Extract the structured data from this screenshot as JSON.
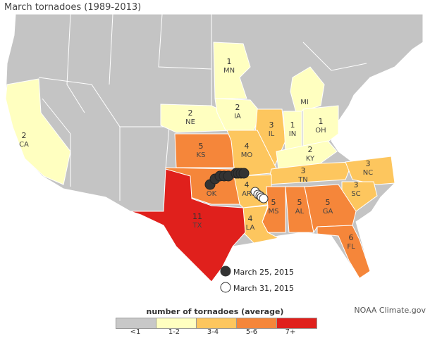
{
  "title": "March tornadoes (1989-2013)",
  "credit": "NOAA Climate.gov",
  "legend": {
    "title": "number of tornadoes (average)",
    "bins": [
      {
        "label": "<1",
        "color": "#c8c8c8"
      },
      {
        "label": "1-2",
        "color": "#ffffc0"
      },
      {
        "label": "3-4",
        "color": "#fdc65e"
      },
      {
        "label": "5-6",
        "color": "#f5863a"
      },
      {
        "label": "7+",
        "color": "#e0201c"
      }
    ]
  },
  "colors": {
    "ocean": "#ffffff",
    "land_background": "#c4c4c4",
    "state_border": "#ffffff",
    "marker_march25": "#333333",
    "marker_march31": "#ffffff"
  },
  "states": [
    {
      "abbr": "CA",
      "value": "2",
      "bin": 1
    },
    {
      "abbr": "MN",
      "value": "1",
      "bin": 1
    },
    {
      "abbr": "MI",
      "value": "",
      "bin": 1
    },
    {
      "abbr": "NE",
      "value": "2",
      "bin": 1
    },
    {
      "abbr": "IA",
      "value": "2",
      "bin": 1
    },
    {
      "abbr": "IL",
      "value": "3",
      "bin": 2
    },
    {
      "abbr": "IN",
      "value": "1",
      "bin": 1
    },
    {
      "abbr": "OH",
      "value": "1",
      "bin": 1
    },
    {
      "abbr": "KS",
      "value": "5",
      "bin": 3
    },
    {
      "abbr": "MO",
      "value": "4",
      "bin": 2
    },
    {
      "abbr": "KY",
      "value": "2",
      "bin": 1
    },
    {
      "abbr": "TN",
      "value": "3",
      "bin": 2
    },
    {
      "abbr": "NC",
      "value": "3",
      "bin": 2
    },
    {
      "abbr": "OK",
      "value": "5",
      "bin": 3
    },
    {
      "abbr": "AR",
      "value": "4",
      "bin": 2
    },
    {
      "abbr": "SC",
      "value": "3",
      "bin": 2
    },
    {
      "abbr": "MS",
      "value": "5",
      "bin": 3
    },
    {
      "abbr": "AL",
      "value": "5",
      "bin": 3
    },
    {
      "abbr": "GA",
      "value": "5",
      "bin": 3
    },
    {
      "abbr": "LA",
      "value": "4",
      "bin": 2
    },
    {
      "abbr": "TX",
      "value": "11",
      "bin": 4
    },
    {
      "abbr": "FL",
      "value": "6",
      "bin": 3
    }
  ],
  "key": [
    {
      "label": "March 25, 2015",
      "style": "filled"
    },
    {
      "label": "March 31, 2015",
      "style": "hollow"
    }
  ],
  "events_march25_count": 9,
  "events_march31_count": 5
}
